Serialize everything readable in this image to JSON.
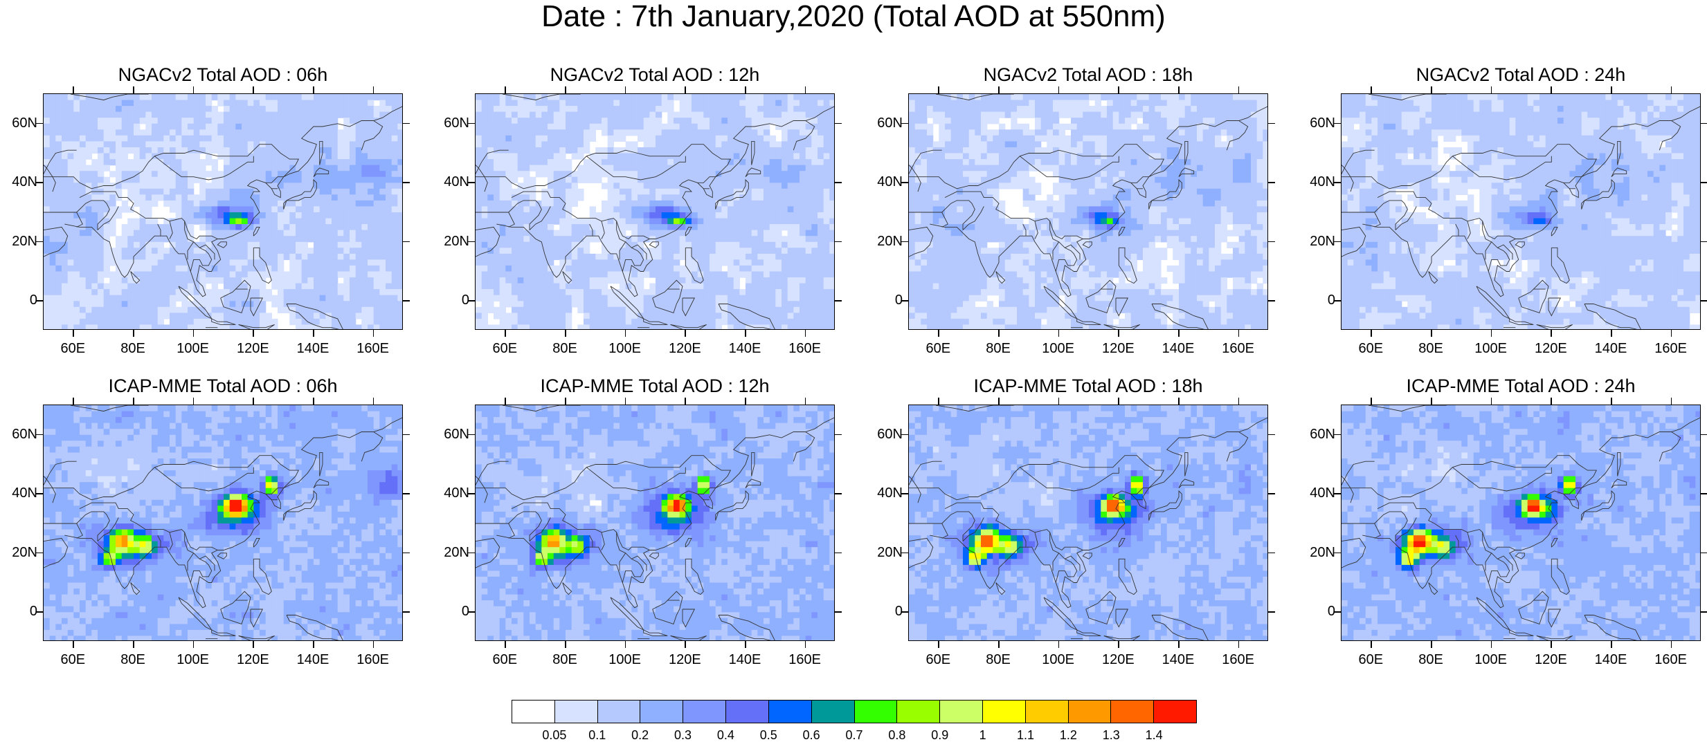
{
  "title": "Date : 7th January,2020 (Total AOD at 550nm)",
  "panels": [
    {
      "title": "NGACv2 Total AOD : 06h",
      "model": "ngac",
      "row": 0,
      "col": 0
    },
    {
      "title": "NGACv2 Total AOD : 12h",
      "model": "ngac",
      "row": 0,
      "col": 1
    },
    {
      "title": "NGACv2 Total AOD : 18h",
      "model": "ngac",
      "row": 0,
      "col": 2
    },
    {
      "title": "NGACv2 Total AOD : 24h",
      "model": "ngac",
      "row": 0,
      "col": 3
    },
    {
      "title": "ICAP-MME Total AOD : 06h",
      "model": "icap",
      "row": 1,
      "col": 0
    },
    {
      "title": "ICAP-MME Total AOD : 12h",
      "model": "icap",
      "row": 1,
      "col": 1
    },
    {
      "title": "ICAP-MME Total AOD : 18h",
      "model": "icap",
      "row": 1,
      "col": 2
    },
    {
      "title": "ICAP-MME Total AOD : 24h",
      "model": "icap",
      "row": 1,
      "col": 3
    }
  ],
  "axes": {
    "lon_range": [
      50,
      170
    ],
    "lat_range": [
      -10,
      70
    ],
    "x_ticks": [
      "60E",
      "80E",
      "100E",
      "120E",
      "140E",
      "160E"
    ],
    "x_tick_values": [
      60,
      80,
      100,
      120,
      140,
      160
    ],
    "y_ticks": [
      "60N",
      "40N",
      "20N",
      "0"
    ],
    "y_tick_values": [
      60,
      40,
      20,
      0
    ]
  },
  "colorbar": {
    "labels": [
      "0.05",
      "0.1",
      "0.2",
      "0.3",
      "0.4",
      "0.5",
      "0.6",
      "0.7",
      "0.8",
      "0.9",
      "1",
      "1.1",
      "1.2",
      "1.3",
      "1.4"
    ],
    "colors": [
      "#ffffff",
      "#d6e2ff",
      "#b5c9ff",
      "#8fb0ff",
      "#7f96ff",
      "#6370f7",
      "#0066ff",
      "#009999",
      "#33ff00",
      "#99ff00",
      "#ccff66",
      "#ffff00",
      "#ffcc00",
      "#ff9900",
      "#ff6600",
      "#ff1a00"
    ]
  }
}
